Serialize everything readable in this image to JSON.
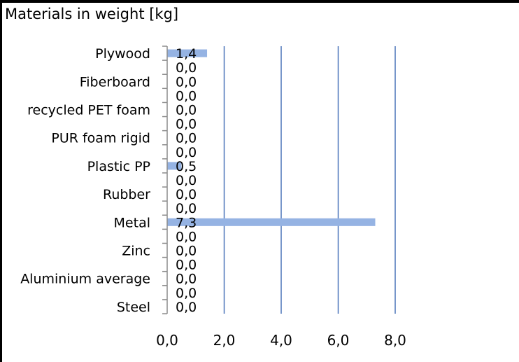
{
  "chart_data": {
    "type": "bar",
    "orientation": "horizontal",
    "title": "Materials in weight [kg]",
    "xlim": [
      0,
      8
    ],
    "x_ticks": [
      0,
      2,
      4,
      6,
      8
    ],
    "x_tick_labels": [
      "0,0",
      "2,0",
      "4,0",
      "6,0",
      "8,0"
    ],
    "grid": "vertical",
    "bar_color": "#95b3e3",
    "gridline_color": "#4a74b9",
    "rows": [
      {
        "label": "Plywood",
        "value": 1.4,
        "value_label": "1,4"
      },
      {
        "label": "",
        "value": 0.0,
        "value_label": "0,0"
      },
      {
        "label": "Fiberboard",
        "value": 0.0,
        "value_label": "0,0"
      },
      {
        "label": "",
        "value": 0.0,
        "value_label": "0,0"
      },
      {
        "label": "recycled PET foam",
        "value": 0.0,
        "value_label": "0,0"
      },
      {
        "label": "",
        "value": 0.0,
        "value_label": "0,0"
      },
      {
        "label": "PUR foam rigid",
        "value": 0.0,
        "value_label": "0,0"
      },
      {
        "label": "",
        "value": 0.0,
        "value_label": "0,0"
      },
      {
        "label": "Plastic PP",
        "value": 0.5,
        "value_label": "0,5"
      },
      {
        "label": "",
        "value": 0.0,
        "value_label": "0,0"
      },
      {
        "label": "Rubber",
        "value": 0.0,
        "value_label": "0,0"
      },
      {
        "label": "",
        "value": 0.0,
        "value_label": "0,0"
      },
      {
        "label": "Metal",
        "value": 7.3,
        "value_label": "7,3"
      },
      {
        "label": "",
        "value": 0.0,
        "value_label": "0,0"
      },
      {
        "label": "Zinc",
        "value": 0.0,
        "value_label": "0,0"
      },
      {
        "label": "",
        "value": 0.0,
        "value_label": "0,0"
      },
      {
        "label": "Aluminium average",
        "value": 0.0,
        "value_label": "0,0"
      },
      {
        "label": "",
        "value": 0.0,
        "value_label": "0,0"
      },
      {
        "label": "Steel",
        "value": 0.0,
        "value_label": "0,0"
      }
    ]
  }
}
